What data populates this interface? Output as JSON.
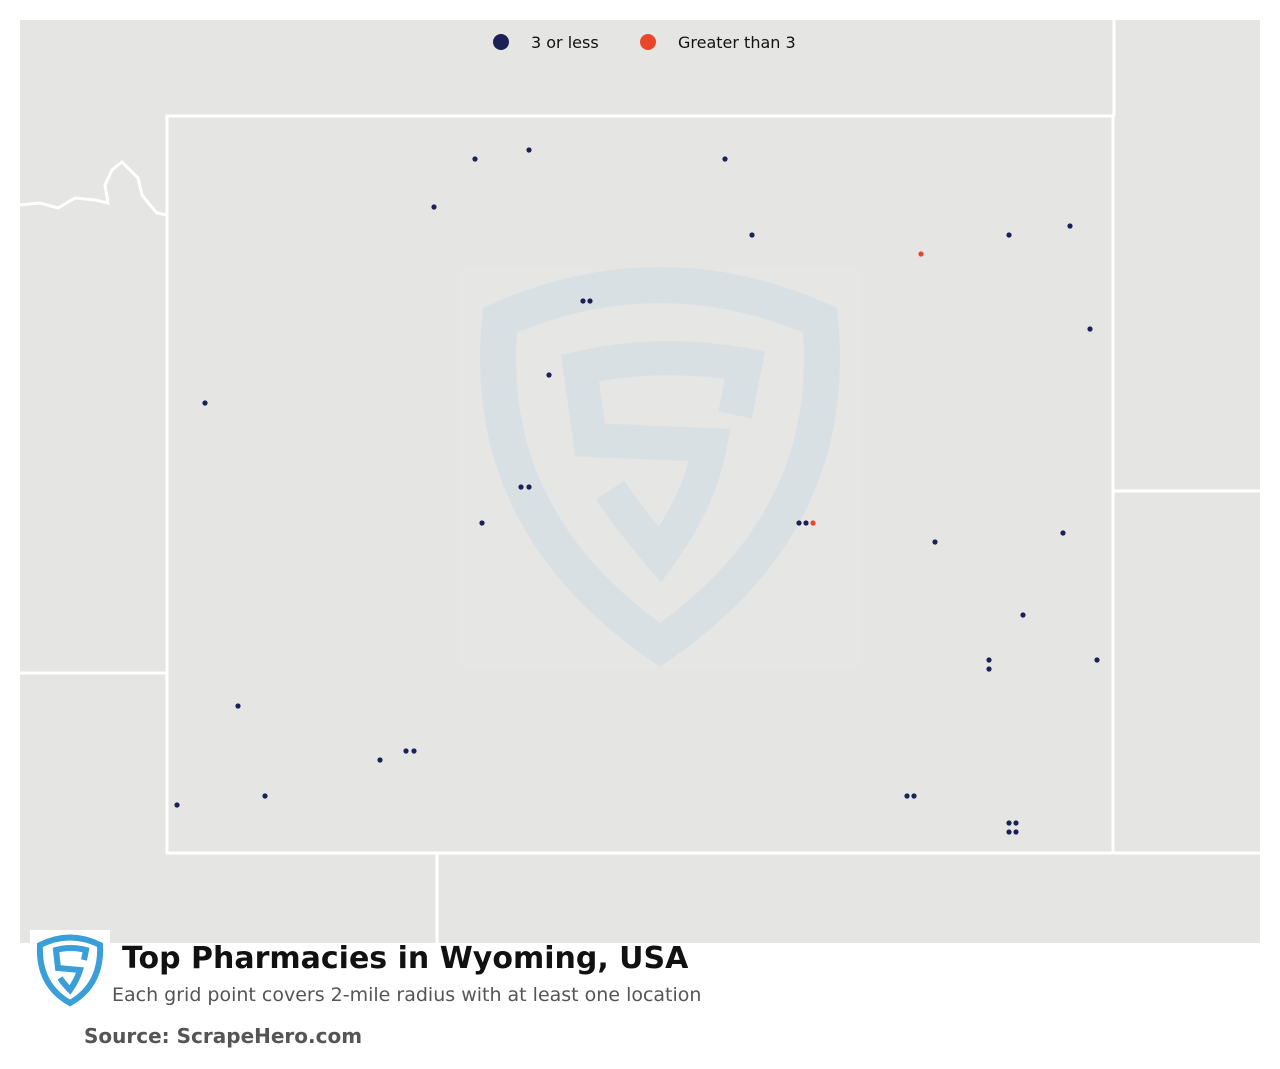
{
  "legend": {
    "items": [
      {
        "label": "3 or less",
        "color": "#1b2157"
      },
      {
        "label": "Greater than 3",
        "color": "#e8472a"
      }
    ]
  },
  "title": "Top Pharmacies in Wyoming, USA",
  "subtitle": "Each grid point covers 2-mile radius with at least one location",
  "source": "Source: ScrapeHero.com"
}
